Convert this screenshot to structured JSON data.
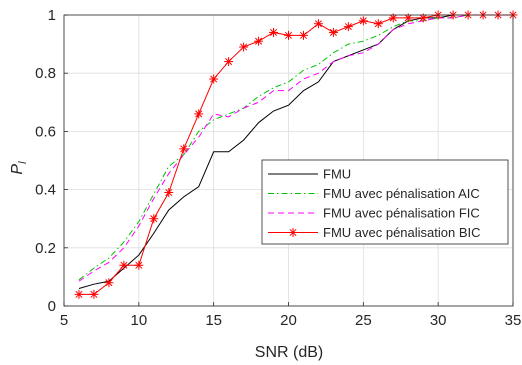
{
  "chart_data": {
    "type": "line",
    "xlabel": "SNR (dB)",
    "ylabel": "P",
    "ylabel_subscript": "l",
    "xlim": [
      5,
      35
    ],
    "ylim": [
      0,
      1
    ],
    "xticks": [
      5,
      10,
      15,
      20,
      25,
      30,
      35
    ],
    "yticks": [
      0,
      0.2,
      0.4,
      0.6,
      0.8,
      1
    ],
    "grid": true,
    "legend_position": "inside-right",
    "series": [
      {
        "name": "FMU",
        "color": "#000000",
        "line_style": "solid",
        "marker": "none",
        "x": [
          6,
          7,
          8,
          9,
          10,
          11,
          12,
          13,
          14,
          15,
          16,
          17,
          18,
          19,
          20,
          21,
          22,
          23,
          24,
          25,
          26,
          27,
          28,
          29,
          30,
          31,
          32,
          33,
          34,
          35
        ],
        "y": [
          0.06,
          0.075,
          0.085,
          0.13,
          0.175,
          0.25,
          0.33,
          0.375,
          0.41,
          0.53,
          0.53,
          0.57,
          0.63,
          0.67,
          0.69,
          0.74,
          0.77,
          0.84,
          0.86,
          0.88,
          0.9,
          0.95,
          0.98,
          0.99,
          0.99,
          1.0,
          1.0,
          1.0,
          1.0,
          1.0
        ]
      },
      {
        "name": "FMU avec pénalisation AIC",
        "color": "#00c000",
        "line_style": "dashdot",
        "marker": "none",
        "x": [
          6,
          7,
          8,
          9,
          10,
          11,
          12,
          13,
          14,
          15,
          16,
          17,
          18,
          19,
          20,
          21,
          22,
          23,
          24,
          25,
          26,
          27,
          28,
          29,
          30,
          31,
          32,
          33,
          34,
          35
        ],
        "y": [
          0.09,
          0.13,
          0.165,
          0.22,
          0.29,
          0.385,
          0.48,
          0.52,
          0.6,
          0.64,
          0.66,
          0.68,
          0.72,
          0.75,
          0.77,
          0.81,
          0.83,
          0.87,
          0.9,
          0.91,
          0.93,
          0.96,
          0.98,
          0.98,
          0.99,
          0.99,
          1.0,
          1.0,
          1.0,
          1.0
        ]
      },
      {
        "name": "FMU avec pénalisation FIC",
        "color": "#ff00ff",
        "line_style": "dashed",
        "marker": "none",
        "x": [
          6,
          7,
          8,
          9,
          10,
          11,
          12,
          13,
          14,
          15,
          16,
          17,
          18,
          19,
          20,
          21,
          22,
          23,
          24,
          25,
          26,
          27,
          28,
          29,
          30,
          31,
          32,
          33,
          34,
          35
        ],
        "y": [
          0.085,
          0.12,
          0.15,
          0.2,
          0.275,
          0.37,
          0.455,
          0.52,
          0.58,
          0.66,
          0.65,
          0.68,
          0.7,
          0.74,
          0.74,
          0.78,
          0.8,
          0.84,
          0.86,
          0.87,
          0.9,
          0.95,
          0.97,
          0.98,
          0.99,
          0.99,
          1.0,
          1.0,
          1.0,
          1.0
        ]
      },
      {
        "name": "FMU avec pénalisation BIC",
        "color": "#ff0000",
        "line_style": "solid",
        "marker": "asterisk",
        "x": [
          6,
          7,
          8,
          9,
          10,
          11,
          12,
          13,
          14,
          15,
          16,
          17,
          18,
          19,
          20,
          21,
          22,
          23,
          24,
          25,
          26,
          27,
          28,
          29,
          30,
          31,
          32,
          33,
          34,
          35
        ],
        "y": [
          0.04,
          0.04,
          0.08,
          0.14,
          0.14,
          0.3,
          0.39,
          0.54,
          0.66,
          0.78,
          0.84,
          0.89,
          0.91,
          0.94,
          0.93,
          0.93,
          0.97,
          0.94,
          0.96,
          0.98,
          0.97,
          0.99,
          0.99,
          0.99,
          1.0,
          1.0,
          1.0,
          1.0,
          1.0,
          1.0
        ]
      }
    ]
  }
}
